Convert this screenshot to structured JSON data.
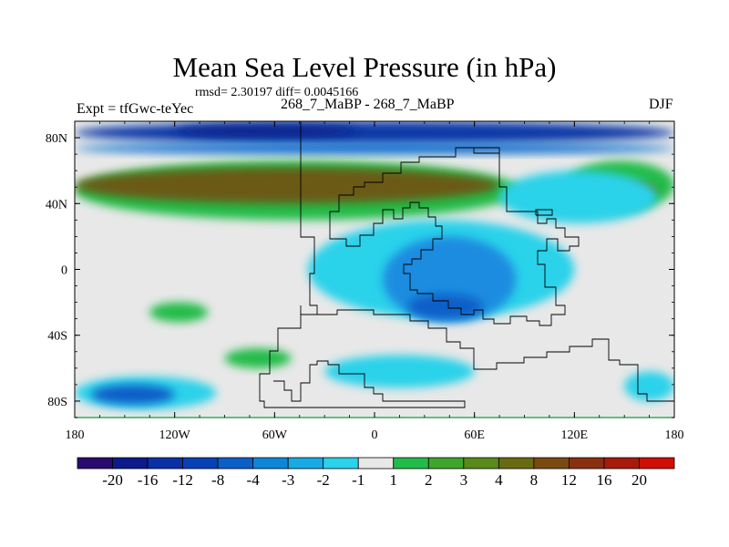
{
  "chart_data": {
    "type": "heatmap",
    "title": "Mean Sea Level Pressure (in hPa)",
    "stats": "rmsd= 2.30197 diff= 0.0045166",
    "expt": "Expt = tfGwc-teYec",
    "subtitle": "268_7_MaBP - 268_7_MaBP",
    "season": "DJF",
    "x_range": [
      -180,
      180
    ],
    "y_range": [
      -90,
      90
    ],
    "x_ticks": [
      {
        "value": -180,
        "label": "180"
      },
      {
        "value": -120,
        "label": "120W"
      },
      {
        "value": -60,
        "label": "60W"
      },
      {
        "value": 0,
        "label": "0"
      },
      {
        "value": 60,
        "label": "60E"
      },
      {
        "value": 120,
        "label": "120E"
      },
      {
        "value": 180,
        "label": "180"
      }
    ],
    "y_ticks": [
      {
        "value": 80,
        "label": "80N"
      },
      {
        "value": 40,
        "label": "40N"
      },
      {
        "value": 0,
        "label": "0"
      },
      {
        "value": -40,
        "label": "40S"
      },
      {
        "value": -80,
        "label": "80S"
      }
    ],
    "colorbar": {
      "colors": [
        "#2a0a6e",
        "#0c1a8c",
        "#0a2fa6",
        "#0840b8",
        "#0a5fc8",
        "#0e86d8",
        "#18aae4",
        "#2ad2ea",
        "#e8e8e8",
        "#22bc4a",
        "#3fa62c",
        "#5a8a1a",
        "#6a6a10",
        "#7a4a10",
        "#8a3010",
        "#a81a0a",
        "#d00e06"
      ],
      "labels": [
        "-20",
        "-16",
        "-12",
        "-8",
        "-4",
        "-3",
        "-2",
        "-1",
        "1",
        "2",
        "3",
        "4",
        "8",
        "12",
        "16",
        "20"
      ]
    },
    "fields": [
      {
        "name": "arctic-deep-low",
        "level": -8,
        "color": "#0a3aa8",
        "lon": [
          -180,
          180
        ],
        "lat": [
          76,
          90
        ]
      },
      {
        "name": "arctic-core-low",
        "level": -12,
        "color": "#0a2890",
        "lon": [
          -120,
          -10
        ],
        "lat": [
          80,
          88
        ]
      },
      {
        "name": "subarctic-low",
        "level": -4,
        "color": "#1070d0",
        "lon": [
          -180,
          180
        ],
        "lat": [
          70,
          77
        ]
      },
      {
        "name": "midlat-high-band",
        "level": 2,
        "color": "#22bc4a",
        "lon": [
          -180,
          88
        ],
        "lat": [
          30,
          66
        ]
      },
      {
        "name": "midlat-high-core",
        "level": 8,
        "color": "#6b5a14",
        "lon": [
          -180,
          75
        ],
        "lat": [
          40,
          62
        ]
      },
      {
        "name": "pacific-high-east",
        "level": 2,
        "color": "#22bc4a",
        "lon": [
          115,
          180
        ],
        "lat": [
          36,
          66
        ]
      },
      {
        "name": "pacific-high-east-core",
        "level": 4,
        "color": "#6a6a10",
        "lon": [
          145,
          170
        ],
        "lat": [
          44,
          52
        ]
      },
      {
        "name": "tropical-low-broad",
        "level": -2,
        "color": "#2ad2ea",
        "lon": [
          -40,
          120
        ],
        "lat": [
          -30,
          30
        ]
      },
      {
        "name": "tropical-low-core",
        "level": -3,
        "color": "#1a8ce0",
        "lon": [
          5,
          85
        ],
        "lat": [
          -32,
          20
        ]
      },
      {
        "name": "tropical-low-deep",
        "level": -4,
        "color": "#0a5fc8",
        "lon": [
          20,
          65
        ],
        "lat": [
          -30,
          -15
        ]
      },
      {
        "name": "pacific-north-low",
        "level": -1,
        "color": "#2ad2ea",
        "lon": [
          75,
          170
        ],
        "lat": [
          28,
          60
        ]
      },
      {
        "name": "south-atlantic-high",
        "level": 2,
        "color": "#22bc4a",
        "lon": [
          -135,
          -100
        ],
        "lat": [
          -32,
          -20
        ]
      },
      {
        "name": "south-pacific-high",
        "level": 2,
        "color": "#22bc4a",
        "lon": [
          -90,
          -50
        ],
        "lat": [
          -60,
          -48
        ]
      },
      {
        "name": "southern-ocean-low",
        "level": -2,
        "color": "#2ad2ea",
        "lon": [
          -180,
          -95
        ],
        "lat": [
          -85,
          -65
        ]
      },
      {
        "name": "southern-ocean-core",
        "level": -4,
        "color": "#0a5fc8",
        "lon": [
          -170,
          -120
        ],
        "lat": [
          -82,
          -70
        ]
      },
      {
        "name": "indian-ocean-low",
        "level": -1,
        "color": "#2ad2ea",
        "lon": [
          -30,
          60
        ],
        "lat": [
          -72,
          -52
        ]
      },
      {
        "name": "antarctic-low",
        "level": -1,
        "color": "#2ad2ea",
        "lon": [
          150,
          180
        ],
        "lat": [
          -80,
          -62
        ]
      }
    ]
  }
}
